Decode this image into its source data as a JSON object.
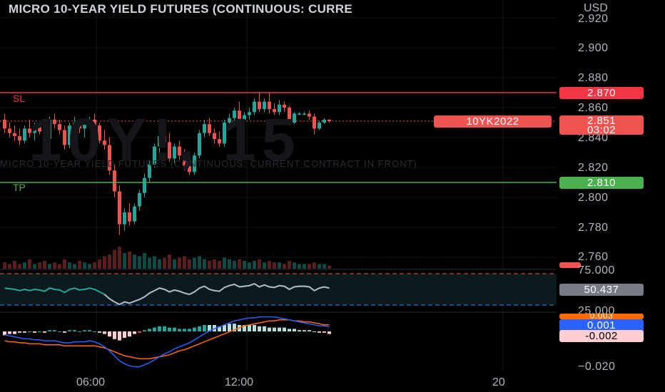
{
  "header": {
    "title": "MICRO 10-YEAR YIELD FUTURES (CONTINUOUS: CURRE",
    "currency": "USD"
  },
  "watermark": {
    "symbol": "10Y!, 15",
    "subtitle": "MICRO 10-YEAR YIELD FUTURES (CONTINUOUS: CURRENT CONTRACT IN FRONT)"
  },
  "price_axis": {
    "ticks": [
      "2.920",
      "2.900",
      "2.880",
      "2.860",
      "2.840",
      "2.820",
      "2.800",
      "2.780",
      "2.760"
    ]
  },
  "levels": {
    "sl": {
      "label": "SL",
      "value": "2.870",
      "color": "#f23645"
    },
    "tp": {
      "label": "TP",
      "value": "2.810",
      "color": "#4caf50"
    }
  },
  "price_tag": {
    "symbol": "10YK2022",
    "price": "2.851",
    "countdown": "03:02",
    "color": "#f05350"
  },
  "rsi_pane": {
    "upper": "75.000",
    "lower": "25.000",
    "value": "50.437"
  },
  "macd_pane": {
    "top_partial": "0.003",
    "macd_value": "0.001",
    "signal_value": "-0.002",
    "bottom_tick": "−0.020"
  },
  "time_axis": {
    "labels": [
      "06:00",
      "12:00",
      "20"
    ]
  },
  "colors": {
    "up": "#26a69a",
    "down": "#ef5350",
    "background": "#000000",
    "rsi_line": "#b2b5be",
    "macd_line": "#2962ff",
    "signal_line": "#ff6d00"
  },
  "chart_data": {
    "type": "candlestick",
    "timeframe": "15",
    "candles_ohlc": [
      [
        2.852,
        2.856,
        2.843,
        2.846
      ],
      [
        2.846,
        2.85,
        2.84,
        2.843
      ],
      [
        2.843,
        2.848,
        2.838,
        2.841
      ],
      [
        2.841,
        2.846,
        2.835,
        2.838
      ],
      [
        2.838,
        2.848,
        2.836,
        2.846
      ],
      [
        2.846,
        2.852,
        2.84,
        2.843
      ],
      [
        2.843,
        2.85,
        2.838,
        2.847
      ],
      [
        2.847,
        2.851,
        2.842,
        2.844
      ],
      [
        2.844,
        2.846,
        2.836,
        2.839
      ],
      [
        2.839,
        2.854,
        2.836,
        2.852
      ],
      [
        2.852,
        2.856,
        2.846,
        2.849
      ],
      [
        2.849,
        2.852,
        2.842,
        2.845
      ],
      [
        2.845,
        2.848,
        2.832,
        2.835
      ],
      [
        2.835,
        2.85,
        2.833,
        2.848
      ],
      [
        2.848,
        2.854,
        2.844,
        2.85
      ],
      [
        2.85,
        2.852,
        2.843,
        2.846
      ],
      [
        2.846,
        2.85,
        2.84,
        2.849
      ],
      [
        2.849,
        2.854,
        2.846,
        2.852
      ],
      [
        2.852,
        2.856,
        2.846,
        2.848
      ],
      [
        2.848,
        2.85,
        2.836,
        2.838
      ],
      [
        2.838,
        2.845,
        2.832,
        2.835
      ],
      [
        2.835,
        2.84,
        2.815,
        2.818
      ],
      [
        2.818,
        2.822,
        2.8,
        2.804
      ],
      [
        2.804,
        2.808,
        2.775,
        2.782
      ],
      [
        2.782,
        2.793,
        2.778,
        2.79
      ],
      [
        2.79,
        2.796,
        2.781,
        2.784
      ],
      [
        2.784,
        2.796,
        2.782,
        2.794
      ],
      [
        2.794,
        2.805,
        2.791,
        2.803
      ],
      [
        2.803,
        2.816,
        2.8,
        2.813
      ],
      [
        2.813,
        2.825,
        2.81,
        2.822
      ],
      [
        2.822,
        2.836,
        2.82,
        2.834
      ],
      [
        2.834,
        2.844,
        2.83,
        2.841
      ],
      [
        2.841,
        2.846,
        2.834,
        2.837
      ],
      [
        2.837,
        2.843,
        2.824,
        2.826
      ],
      [
        2.826,
        2.836,
        2.823,
        2.834
      ],
      [
        2.834,
        2.838,
        2.825,
        2.828
      ],
      [
        2.828,
        2.832,
        2.818,
        2.821
      ],
      [
        2.821,
        2.826,
        2.815,
        2.817
      ],
      [
        2.817,
        2.83,
        2.815,
        2.828
      ],
      [
        2.828,
        2.845,
        2.826,
        2.843
      ],
      [
        2.843,
        2.852,
        2.84,
        2.849
      ],
      [
        2.849,
        2.853,
        2.841,
        2.843
      ],
      [
        2.843,
        2.846,
        2.836,
        2.839
      ],
      [
        2.839,
        2.844,
        2.834,
        2.836
      ],
      [
        2.836,
        2.852,
        2.834,
        2.85
      ],
      [
        2.85,
        2.856,
        2.847,
        2.853
      ],
      [
        2.853,
        2.86,
        2.851,
        2.858
      ],
      [
        2.858,
        2.864,
        2.85,
        2.852
      ],
      [
        2.852,
        2.857,
        2.849,
        2.855
      ],
      [
        2.855,
        2.86,
        2.852,
        2.857
      ],
      [
        2.857,
        2.866,
        2.855,
        2.864
      ],
      [
        2.864,
        2.87,
        2.857,
        2.859
      ],
      [
        2.859,
        2.866,
        2.857,
        2.864
      ],
      [
        2.864,
        2.87,
        2.856,
        2.859
      ],
      [
        2.859,
        2.863,
        2.855,
        2.857
      ],
      [
        2.857,
        2.865,
        2.855,
        2.862
      ],
      [
        2.862,
        2.864,
        2.857,
        2.86
      ],
      [
        2.86,
        2.861,
        2.848,
        2.85
      ],
      [
        2.85,
        2.857,
        2.849,
        2.856
      ],
      [
        2.856,
        2.857,
        2.855,
        2.856
      ],
      [
        2.856,
        2.857,
        2.855,
        2.856
      ],
      [
        2.856,
        2.858,
        2.852,
        2.854
      ],
      [
        2.854,
        2.856,
        2.842,
        2.846
      ],
      [
        2.846,
        2.851,
        2.845,
        2.85
      ],
      [
        2.85,
        2.853,
        2.849,
        2.852
      ],
      [
        2.852,
        2.852,
        2.85,
        2.851
      ]
    ]
  }
}
